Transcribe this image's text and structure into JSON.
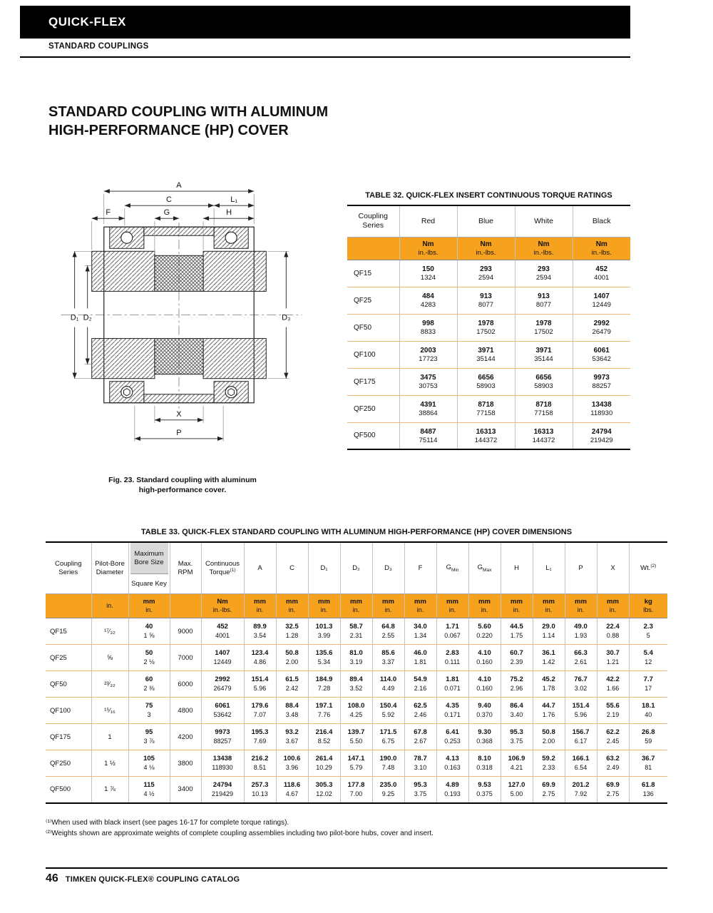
{
  "colors": {
    "accent": "#F6A21F",
    "header_gray": "#D9D9D9"
  },
  "header": {
    "brand": "QUICK-FLEX",
    "subtitle": "STANDARD COUPLINGS"
  },
  "title": {
    "line1": "STANDARD COUPLING WITH ALUMINUM",
    "line2": "HIGH-PERFORMANCE (HP) COVER"
  },
  "figure": {
    "caption_line1": "Fig. 23. Standard coupling with aluminum",
    "caption_line2": "high-performance cover.",
    "dims": {
      "a": "A",
      "c": "C",
      "l1": "L₁",
      "f": "F",
      "g": "G",
      "h": "H",
      "d1": "D₁",
      "d2": "D₂",
      "d3": "D₃",
      "x": "X",
      "p": "P"
    }
  },
  "table32": {
    "title": "TABLE 32. QUICK-FLEX INSERT CONTINUOUS TORQUE RATINGS",
    "headers": {
      "series": "Coupling Series",
      "red": "Red",
      "blue": "Blue",
      "white": "White",
      "black": "Black"
    },
    "units": {
      "nm": "Nm",
      "inlbs": "in.-lbs."
    },
    "rows": [
      {
        "series": "QF15",
        "values": [
          [
            "150",
            "1324"
          ],
          [
            "293",
            "2594"
          ],
          [
            "293",
            "2594"
          ],
          [
            "452",
            "4001"
          ]
        ]
      },
      {
        "series": "QF25",
        "values": [
          [
            "484",
            "4283"
          ],
          [
            "913",
            "8077"
          ],
          [
            "913",
            "8077"
          ],
          [
            "1407",
            "12449"
          ]
        ]
      },
      {
        "series": "QF50",
        "values": [
          [
            "998",
            "8833"
          ],
          [
            "1978",
            "17502"
          ],
          [
            "1978",
            "17502"
          ],
          [
            "2992",
            "26479"
          ]
        ]
      },
      {
        "series": "QF100",
        "values": [
          [
            "2003",
            "17723"
          ],
          [
            "3971",
            "35144"
          ],
          [
            "3971",
            "35144"
          ],
          [
            "6061",
            "53642"
          ]
        ]
      },
      {
        "series": "QF175",
        "values": [
          [
            "3475",
            "30753"
          ],
          [
            "6656",
            "58903"
          ],
          [
            "6656",
            "58903"
          ],
          [
            "9973",
            "88257"
          ]
        ]
      },
      {
        "series": "QF250",
        "values": [
          [
            "4391",
            "38864"
          ],
          [
            "8718",
            "77158"
          ],
          [
            "8718",
            "77158"
          ],
          [
            "13438",
            "118930"
          ]
        ]
      },
      {
        "series": "QF500",
        "values": [
          [
            "8487",
            "75114"
          ],
          [
            "16313",
            "144372"
          ],
          [
            "16313",
            "144372"
          ],
          [
            "24794",
            "219429"
          ]
        ]
      }
    ]
  },
  "table33": {
    "title": "TABLE 33. QUICK-FLEX STANDARD COUPLING WITH ALUMINUM HIGH-PERFORMANCE (HP) COVER DIMENSIONS",
    "headers": {
      "series": "Coupling Series",
      "pilot": "Pilot-Bore Diameter",
      "bore_top": "Maximum Bore Size",
      "bore_bottom": "Square Key",
      "rpm": "Max. RPM",
      "torque": "Continuous Torque",
      "torque_sup": "(1)",
      "a": "A",
      "c": "C",
      "d1": "D₁",
      "d2": "D₂",
      "d3": "D₃",
      "f": "F",
      "g": "G",
      "g_min": "Min",
      "g_max": "Max",
      "h": "H",
      "l1": "L₁",
      "p": "P",
      "x": "X",
      "wt": "Wt.",
      "wt_sup": "(2)"
    },
    "units": {
      "in": "in.",
      "mm": "mm",
      "nm": "Nm",
      "inlbs": "in.-lbs.",
      "kg": "kg",
      "lbs": "lbs."
    },
    "rows": [
      {
        "series": "QF15",
        "pilot": "¹⁷⁄₃₂",
        "bore": [
          "40",
          "1 ⅝"
        ],
        "rpm": "9000",
        "cells": [
          [
            "452",
            "4001"
          ],
          [
            "89.9",
            "3.54"
          ],
          [
            "32.5",
            "1.28"
          ],
          [
            "101.3",
            "3.99"
          ],
          [
            "58.7",
            "2.31"
          ],
          [
            "64.8",
            "2.55"
          ],
          [
            "34.0",
            "1.34"
          ],
          [
            "1.71",
            "0.067"
          ],
          [
            "5.60",
            "0.220"
          ],
          [
            "44.5",
            "1.75"
          ],
          [
            "29.0",
            "1.14"
          ],
          [
            "49.0",
            "1.93"
          ],
          [
            "22.4",
            "0.88"
          ],
          [
            "2.3",
            "5"
          ]
        ]
      },
      {
        "series": "QF25",
        "pilot": "⅝",
        "bore": [
          "50",
          "2 ⅛"
        ],
        "rpm": "7000",
        "cells": [
          [
            "1407",
            "12449"
          ],
          [
            "123.4",
            "4.86"
          ],
          [
            "50.8",
            "2.00"
          ],
          [
            "135.6",
            "5.34"
          ],
          [
            "81.0",
            "3.19"
          ],
          [
            "85.6",
            "3.37"
          ],
          [
            "46.0",
            "1.81"
          ],
          [
            "2.83",
            "0.111"
          ],
          [
            "4.10",
            "0.160"
          ],
          [
            "60.7",
            "2.39"
          ],
          [
            "36.1",
            "1.42"
          ],
          [
            "66.3",
            "2.61"
          ],
          [
            "30.7",
            "1.21"
          ],
          [
            "5.4",
            "12"
          ]
        ]
      },
      {
        "series": "QF50",
        "pilot": "²³⁄₃₂",
        "bore": [
          "60",
          "2 ⅜"
        ],
        "rpm": "6000",
        "cells": [
          [
            "2992",
            "26479"
          ],
          [
            "151.4",
            "5.96"
          ],
          [
            "61.5",
            "2.42"
          ],
          [
            "184.9",
            "7.28"
          ],
          [
            "89.4",
            "3.52"
          ],
          [
            "114.0",
            "4.49"
          ],
          [
            "54.9",
            "2.16"
          ],
          [
            "1.81",
            "0.071"
          ],
          [
            "4.10",
            "0.160"
          ],
          [
            "75.2",
            "2.96"
          ],
          [
            "45.2",
            "1.78"
          ],
          [
            "76.7",
            "3.02"
          ],
          [
            "42.2",
            "1.66"
          ],
          [
            "7.7",
            "17"
          ]
        ]
      },
      {
        "series": "QF100",
        "pilot": "¹⁵⁄₁₆",
        "bore": [
          "75",
          "3"
        ],
        "rpm": "4800",
        "cells": [
          [
            "6061",
            "53642"
          ],
          [
            "179.6",
            "7.07"
          ],
          [
            "88.4",
            "3.48"
          ],
          [
            "197.1",
            "7.76"
          ],
          [
            "108.0",
            "4.25"
          ],
          [
            "150.4",
            "5.92"
          ],
          [
            "62.5",
            "2.46"
          ],
          [
            "4.35",
            "0.171"
          ],
          [
            "9.40",
            "0.370"
          ],
          [
            "86.4",
            "3.40"
          ],
          [
            "44.7",
            "1.76"
          ],
          [
            "151.4",
            "5.96"
          ],
          [
            "55.6",
            "2.19"
          ],
          [
            "18.1",
            "40"
          ]
        ]
      },
      {
        "series": "QF175",
        "pilot": "1",
        "bore": [
          "95",
          "3 ⅞"
        ],
        "rpm": "4200",
        "cells": [
          [
            "9973",
            "88257"
          ],
          [
            "195.3",
            "7.69"
          ],
          [
            "93.2",
            "3.67"
          ],
          [
            "216.4",
            "8.52"
          ],
          [
            "139.7",
            "5.50"
          ],
          [
            "171.5",
            "6.75"
          ],
          [
            "67.8",
            "2.67"
          ],
          [
            "6.41",
            "0.253"
          ],
          [
            "9.30",
            "0.368"
          ],
          [
            "95.3",
            "3.75"
          ],
          [
            "50.8",
            "2.00"
          ],
          [
            "156.7",
            "6.17"
          ],
          [
            "62.2",
            "2.45"
          ],
          [
            "26.8",
            "59"
          ]
        ]
      },
      {
        "series": "QF250",
        "pilot": "1 ½",
        "bore": [
          "105",
          "4 ⅛"
        ],
        "rpm": "3800",
        "cells": [
          [
            "13438",
            "118930"
          ],
          [
            "216.2",
            "8.51"
          ],
          [
            "100.6",
            "3.96"
          ],
          [
            "261.4",
            "10.29"
          ],
          [
            "147.1",
            "5.79"
          ],
          [
            "190.0",
            "7.48"
          ],
          [
            "78.7",
            "3.10"
          ],
          [
            "4.13",
            "0.163"
          ],
          [
            "8.10",
            "0.318"
          ],
          [
            "106.9",
            "4.21"
          ],
          [
            "59.2",
            "2.33"
          ],
          [
            "166.1",
            "6.54"
          ],
          [
            "63.2",
            "2.49"
          ],
          [
            "36.7",
            "81"
          ]
        ]
      },
      {
        "series": "QF500",
        "pilot": "1 ⅞",
        "bore": [
          "115",
          "4 ½"
        ],
        "rpm": "3400",
        "cells": [
          [
            "24794",
            "219429"
          ],
          [
            "257.3",
            "10.13"
          ],
          [
            "118.6",
            "4.67"
          ],
          [
            "305.3",
            "12.02"
          ],
          [
            "177.8",
            "7.00"
          ],
          [
            "235.0",
            "9.25"
          ],
          [
            "95.3",
            "3.75"
          ],
          [
            "4.89",
            "0.193"
          ],
          [
            "9.53",
            "0.375"
          ],
          [
            "127.0",
            "5.00"
          ],
          [
            "69.9",
            "2.75"
          ],
          [
            "201.2",
            "7.92"
          ],
          [
            "69.9",
            "2.75"
          ],
          [
            "61.8",
            "136"
          ]
        ]
      }
    ]
  },
  "footnotes": [
    "⁽¹⁾When used with black insert (see pages 16-17 for complete torque ratings).",
    "⁽²⁾Weights shown are approximate weights of complete coupling assemblies including two pilot-bore hubs, cover and insert."
  ],
  "footer": {
    "page": "46",
    "text": "TIMKEN QUICK-FLEX® COUPLING CATALOG"
  }
}
